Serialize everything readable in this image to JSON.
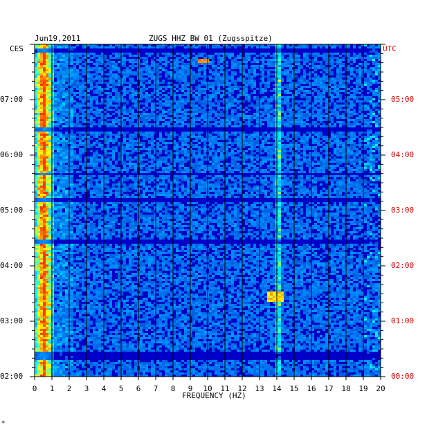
{
  "chart_data": {
    "type": "heatmap",
    "date": "Jun19,2011",
    "title": "ZUGS HHZ BW 01 (Zugsspitze)",
    "xlabel": "FREQUENCY (HZ)",
    "x_range": [
      0,
      20
    ],
    "x_ticks": [
      "0",
      "1",
      "2",
      "3",
      "4",
      "5",
      "6",
      "7",
      "8",
      "9",
      "10",
      "11",
      "12",
      "13",
      "14",
      "15",
      "16",
      "17",
      "18",
      "19",
      "20"
    ],
    "left_axis": {
      "label": "CES",
      "range": [
        "02:00",
        "08:00"
      ],
      "ticks": [
        "07:00",
        "06:00",
        "05:00",
        "04:00",
        "03:00",
        "02:00"
      ]
    },
    "right_axis": {
      "label": "UTC",
      "range": [
        "00:00",
        "06:00"
      ],
      "ticks": [
        "05:00",
        "04:00",
        "03:00",
        "02:00",
        "01:00",
        "00:00"
      ]
    },
    "features": [
      {
        "freq_hz": [
          0,
          1
        ],
        "intensity": "high",
        "time": "throughout"
      },
      {
        "freq_hz": [
          13.8,
          14.1
        ],
        "intensity": "medium",
        "time": "intermittent"
      },
      {
        "freq_hz": [
          9.5,
          9.9
        ],
        "intensity": "high",
        "time": "07:40"
      },
      {
        "freq_hz": [
          13.5,
          14.2
        ],
        "intensity": "high",
        "time": "03:25"
      }
    ],
    "colors": {
      "background": "#0000c8",
      "low": "#0000ff",
      "mid": "#00c8ff",
      "high": "#ffff00",
      "peak": "#ff0000",
      "right_axis_text": "#d00000"
    }
  },
  "footer_mark": "*"
}
